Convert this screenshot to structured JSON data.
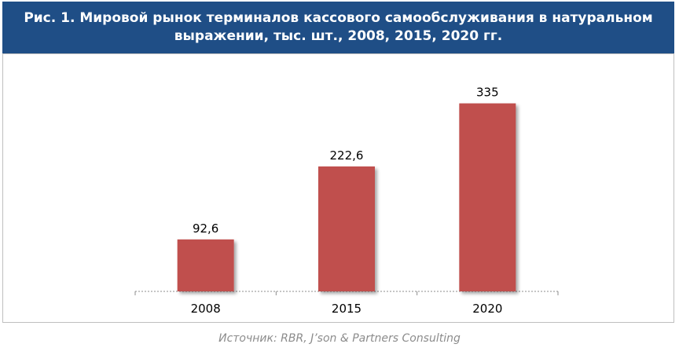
{
  "header": {
    "title": "Рис. 1. Мировой рынок терминалов кассового самообслуживания в натуральном выражении, тыс. шт., 2008, 2015, 2020 гг."
  },
  "chart_data": {
    "type": "bar",
    "categories": [
      "2008",
      "2015",
      "2020"
    ],
    "values": [
      92.6,
      222.6,
      335
    ],
    "value_labels": [
      "92,6",
      "222,6",
      "335"
    ],
    "title": "Рис. 1. Мировой рынок терминалов кассового самообслуживания в натуральном выражении, тыс. шт., 2008, 2015, 2020 гг.",
    "xlabel": "",
    "ylabel": "",
    "ylim": [
      0,
      375
    ],
    "grid": false,
    "legend": "none",
    "bar_color": "#c0504d"
  },
  "source": {
    "text": "Источник: RBR, J’son & Partners Consulting"
  },
  "colors": {
    "header_bg": "#1f4e86",
    "header_text": "#ffffff",
    "bar": "#c0504d",
    "source_text": "#8c8c8c"
  }
}
